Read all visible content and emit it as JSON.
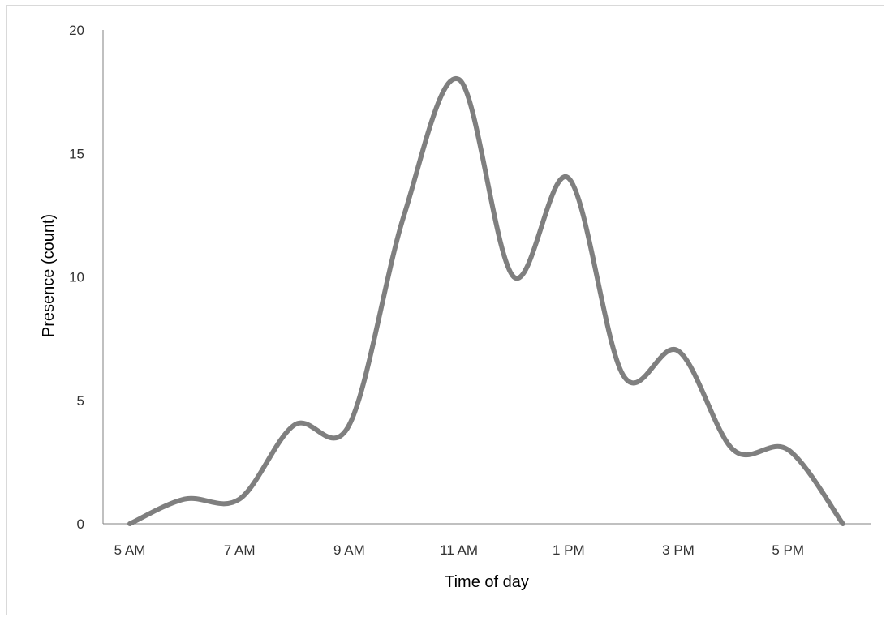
{
  "chart_data": {
    "type": "line",
    "title": "",
    "xlabel": "Time of day",
    "ylabel": "Presence (count)",
    "x": [
      "5 AM",
      "6 AM",
      "7 AM",
      "8 AM",
      "9 AM",
      "10 AM",
      "11 AM",
      "12 PM",
      "1 PM",
      "2 PM",
      "3 PM",
      "4 PM",
      "5 PM",
      "6 PM"
    ],
    "x_tick_labels": [
      "5 AM",
      "7 AM",
      "9 AM",
      "11 AM",
      "1 PM",
      "3 PM",
      "5 PM"
    ],
    "y_tick_labels": [
      "0",
      "5",
      "10",
      "15",
      "20"
    ],
    "series": [
      {
        "values": [
          0,
          1,
          1,
          4,
          4,
          12.5,
          18,
          10,
          14,
          6,
          7,
          3,
          3,
          0
        ]
      }
    ],
    "ylim": [
      0,
      20
    ],
    "grid": false,
    "smooth": true,
    "line_color": "#7f7f7f",
    "axis_color": "#808080"
  }
}
